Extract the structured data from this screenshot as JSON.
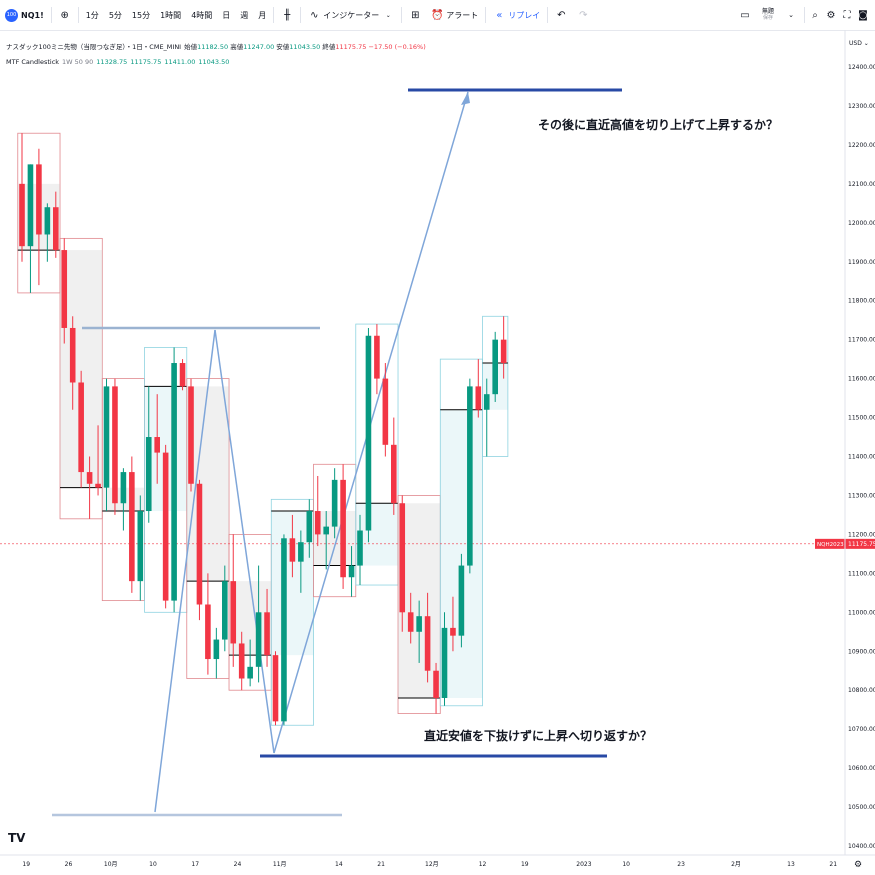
{
  "toolbar": {
    "symbol": "NQ1!",
    "symbol_badge": "100",
    "intervals": [
      "1分",
      "5分",
      "15分",
      "1時間",
      "4時間",
      "日",
      "週",
      "月"
    ],
    "indicators_label": "インジケーター",
    "alert_label": "アラート",
    "replay_label": "リプレイ",
    "save_label": "無題",
    "save_sub": "保存"
  },
  "legend": {
    "title": "ナスダック100ミニ先物（当限つなぎ足）・1日・CME_MINI",
    "open_label": "始値",
    "open": "11182.50",
    "high_label": "高値",
    "high": "11247.00",
    "low_label": "安値",
    "low": "11043.50",
    "close_label": "終値",
    "close": "11175.75",
    "change": "−17.50 (−0.16%)",
    "indicator_name": "MTF Candlestick",
    "indicator_params": "1W 50 90",
    "ind_v1": "11328.75",
    "ind_v2": "11175.75",
    "ind_v3": "11411.00",
    "ind_v4": "11043.50"
  },
  "chart_data": {
    "type": "candlestick",
    "currency": "USD",
    "price_ticks": [
      10400,
      10500,
      10600,
      10700,
      10800,
      10900,
      11000,
      11100,
      11200,
      11300,
      11400,
      11500,
      11600,
      11700,
      11800,
      11900,
      12000,
      12100,
      12200,
      12300,
      12400
    ],
    "price_range": [
      10380,
      12480
    ],
    "x_labels": [
      {
        "i": 0.5,
        "label": "19"
      },
      {
        "i": 5.5,
        "label": "26"
      },
      {
        "i": 10.5,
        "label": "10月"
      },
      {
        "i": 15.5,
        "label": "10"
      },
      {
        "i": 20.5,
        "label": "17"
      },
      {
        "i": 25.5,
        "label": "24"
      },
      {
        "i": 30.5,
        "label": "11月"
      },
      {
        "i": 37.5,
        "label": "14"
      },
      {
        "i": 42.5,
        "label": "21"
      },
      {
        "i": 48.5,
        "label": "12月"
      },
      {
        "i": 54.5,
        "label": "12"
      },
      {
        "i": 59.5,
        "label": "19"
      },
      {
        "i": 66.5,
        "label": "2023"
      },
      {
        "i": 71.5,
        "label": "10"
      },
      {
        "i": 78,
        "label": "23"
      },
      {
        "i": 84.5,
        "label": "2月"
      },
      {
        "i": 91,
        "label": "13"
      },
      {
        "i": 96,
        "label": "21"
      }
    ],
    "candles": [
      {
        "o": 12100,
        "h": 12230,
        "l": 11900,
        "c": 11940
      },
      {
        "o": 11940,
        "h": 12150,
        "l": 11820,
        "c": 12150
      },
      {
        "o": 12150,
        "h": 12190,
        "l": 11840,
        "c": 11970
      },
      {
        "o": 11970,
        "h": 12050,
        "l": 11900,
        "c": 12040
      },
      {
        "o": 12040,
        "h": 12080,
        "l": 11910,
        "c": 11930
      },
      {
        "o": 11930,
        "h": 11960,
        "l": 11690,
        "c": 11730
      },
      {
        "o": 11730,
        "h": 11760,
        "l": 11520,
        "c": 11590
      },
      {
        "o": 11590,
        "h": 11620,
        "l": 11320,
        "c": 11360
      },
      {
        "o": 11360,
        "h": 11400,
        "l": 11240,
        "c": 11330
      },
      {
        "o": 11330,
        "h": 11480,
        "l": 11300,
        "c": 11320
      },
      {
        "o": 11320,
        "h": 11600,
        "l": 11260,
        "c": 11580
      },
      {
        "o": 11580,
        "h": 11600,
        "l": 11250,
        "c": 11280
      },
      {
        "o": 11280,
        "h": 11370,
        "l": 11210,
        "c": 11360
      },
      {
        "o": 11360,
        "h": 11400,
        "l": 11050,
        "c": 11080
      },
      {
        "o": 11080,
        "h": 11300,
        "l": 11030,
        "c": 11260
      },
      {
        "o": 11260,
        "h": 11580,
        "l": 11230,
        "c": 11450
      },
      {
        "o": 11450,
        "h": 11560,
        "l": 11330,
        "c": 11410
      },
      {
        "o": 11410,
        "h": 11430,
        "l": 11010,
        "c": 11030
      },
      {
        "o": 11030,
        "h": 11680,
        "l": 11000,
        "c": 11640
      },
      {
        "o": 11640,
        "h": 11650,
        "l": 11570,
        "c": 11580
      },
      {
        "o": 11580,
        "h": 11600,
        "l": 11310,
        "c": 11330
      },
      {
        "o": 11330,
        "h": 11340,
        "l": 10980,
        "c": 11020
      },
      {
        "o": 11020,
        "h": 11100,
        "l": 10840,
        "c": 10880
      },
      {
        "o": 10880,
        "h": 10960,
        "l": 10830,
        "c": 10930
      },
      {
        "o": 10930,
        "h": 11120,
        "l": 10900,
        "c": 11080
      },
      {
        "o": 11080,
        "h": 11200,
        "l": 10860,
        "c": 10920
      },
      {
        "o": 10920,
        "h": 10950,
        "l": 10800,
        "c": 10830
      },
      {
        "o": 10830,
        "h": 10930,
        "l": 10810,
        "c": 10860
      },
      {
        "o": 10860,
        "h": 11120,
        "l": 10820,
        "c": 11000
      },
      {
        "o": 11000,
        "h": 11060,
        "l": 10860,
        "c": 10890
      },
      {
        "o": 10890,
        "h": 10900,
        "l": 10710,
        "c": 10720
      },
      {
        "o": 10720,
        "h": 11200,
        "l": 10710,
        "c": 11190
      },
      {
        "o": 11190,
        "h": 11250,
        "l": 11090,
        "c": 11130
      },
      {
        "o": 11130,
        "h": 11210,
        "l": 11050,
        "c": 11180
      },
      {
        "o": 11180,
        "h": 11290,
        "l": 11140,
        "c": 11260
      },
      {
        "o": 11260,
        "h": 11350,
        "l": 11170,
        "c": 11200
      },
      {
        "o": 11200,
        "h": 11260,
        "l": 11110,
        "c": 11220
      },
      {
        "o": 11220,
        "h": 11370,
        "l": 11190,
        "c": 11340
      },
      {
        "o": 11340,
        "h": 11380,
        "l": 11060,
        "c": 11090
      },
      {
        "o": 11090,
        "h": 11170,
        "l": 11040,
        "c": 11120
      },
      {
        "o": 11120,
        "h": 11250,
        "l": 11070,
        "c": 11210
      },
      {
        "o": 11210,
        "h": 11730,
        "l": 11180,
        "c": 11710
      },
      {
        "o": 11710,
        "h": 11740,
        "l": 11560,
        "c": 11600
      },
      {
        "o": 11600,
        "h": 11640,
        "l": 11400,
        "c": 11430
      },
      {
        "o": 11430,
        "h": 11500,
        "l": 11250,
        "c": 11280
      },
      {
        "o": 11280,
        "h": 11300,
        "l": 10950,
        "c": 11000
      },
      {
        "o": 11000,
        "h": 11050,
        "l": 10920,
        "c": 10950
      },
      {
        "o": 10950,
        "h": 11030,
        "l": 10870,
        "c": 10990
      },
      {
        "o": 10990,
        "h": 11050,
        "l": 10820,
        "c": 10850
      },
      {
        "o": 10850,
        "h": 10870,
        "l": 10740,
        "c": 10780
      },
      {
        "o": 10780,
        "h": 11000,
        "l": 10760,
        "c": 10960
      },
      {
        "o": 10960,
        "h": 11040,
        "l": 10900,
        "c": 10940
      },
      {
        "o": 10940,
        "h": 11150,
        "l": 10910,
        "c": 11120
      },
      {
        "o": 11120,
        "h": 11600,
        "l": 11100,
        "c": 11580
      },
      {
        "o": 11580,
        "h": 11650,
        "l": 11500,
        "c": 11520
      },
      {
        "o": 11520,
        "h": 11600,
        "l": 11400,
        "c": 11560
      },
      {
        "o": 11560,
        "h": 11720,
        "l": 11540,
        "c": 11700
      },
      {
        "o": 11700,
        "h": 11760,
        "l": 11600,
        "c": 11640
      }
    ]
  },
  "annotations": {
    "top_question": "その後に直近高値を切り上げて上昇するか？",
    "bottom_question": "直近安値を下抜けずに上昇へ切り返すか？"
  },
  "price_label": {
    "symbol": "NQH2023",
    "value": "11175.75",
    "price": 11175.75
  },
  "colors": {
    "up": "#089981",
    "down": "#f23645",
    "accent_line": "#2849a5",
    "trend_line": "#7fa6d9",
    "box_blue": "#8fd3e0",
    "box_red": "#e0888e"
  }
}
